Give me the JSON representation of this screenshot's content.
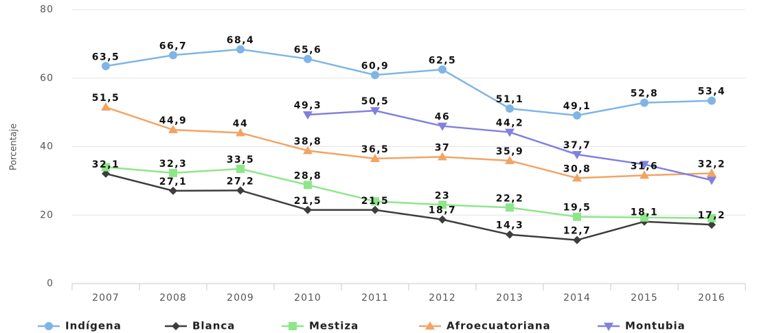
{
  "chart_data": {
    "type": "line",
    "y_label": "Porcentaje",
    "categories": [
      "2007",
      "2008",
      "2009",
      "2010",
      "2011",
      "2012",
      "2013",
      "2014",
      "2015",
      "2016"
    ],
    "ylim": [
      0,
      80
    ],
    "yticks": [
      0,
      20,
      40,
      60,
      80
    ],
    "grid": true,
    "legend": "bottom",
    "series": [
      {
        "name": "Indígena",
        "color": "#7fb5e6",
        "marker": "circle",
        "values": [
          63.5,
          66.7,
          68.4,
          65.6,
          60.9,
          62.5,
          51.1,
          49.1,
          52.8,
          53.4
        ],
        "value_labels": [
          "63,5",
          "66,7",
          "68,4",
          "65,6",
          "60,9",
          "62,5",
          "51,1",
          "49,1",
          "52,8",
          "53,4"
        ]
      },
      {
        "name": "Blanca",
        "color": "#3d3d3d",
        "marker": "diamond",
        "values": [
          32.1,
          27.1,
          27.2,
          21.5,
          21.5,
          18.7,
          14.3,
          12.7,
          18.1,
          17.2
        ],
        "value_labels": [
          "32,1",
          "27,1",
          "27,2",
          "21,5",
          "21,5",
          "18,7",
          "14,3",
          "12,7",
          "18,1",
          "17,2"
        ]
      },
      {
        "name": "Mestiza",
        "color": "#8ee68a",
        "marker": "square",
        "values": [
          34,
          32.3,
          33.5,
          28.8,
          24,
          23,
          22.2,
          19.5,
          19.3,
          19.1
        ],
        "value_labels": [
          null,
          "32,3",
          "33,5",
          "28,8",
          null,
          "23",
          "22,2",
          "19,5",
          null,
          null
        ]
      },
      {
        "name": "Afroecuatoriana",
        "color": "#f2a463",
        "marker": "triangle-up",
        "values": [
          51.5,
          44.9,
          44,
          38.8,
          36.5,
          37,
          35.9,
          30.8,
          31.6,
          32.2
        ],
        "value_labels": [
          "51,5",
          "44,9",
          "44",
          "38,8",
          "36,5",
          "37",
          "35,9",
          "30,8",
          "31,6",
          "32,2"
        ]
      },
      {
        "name": "Montubia",
        "color": "#8080e0",
        "marker": "triangle-down",
        "values": [
          null,
          null,
          null,
          49.3,
          50.5,
          46,
          44.2,
          37.7,
          34.8,
          30.2
        ],
        "value_labels": [
          null,
          null,
          null,
          "49,3",
          "50,5",
          "46",
          "44,2",
          "37,7",
          null,
          null
        ]
      }
    ]
  }
}
